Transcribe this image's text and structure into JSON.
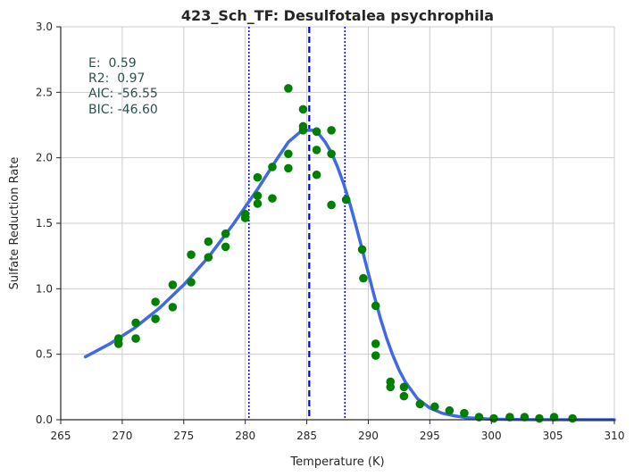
{
  "chart_data": {
    "type": "scatter",
    "title": "423_Sch_TF: Desulfotalea psychrophila",
    "xlabel": "Temperature (K)",
    "ylabel": "Sulfate Reduction Rate",
    "xlim": [
      265,
      310
    ],
    "ylim": [
      0,
      3.0
    ],
    "xticks": [
      "265",
      "270",
      "275",
      "280",
      "285",
      "290",
      "295",
      "300",
      "305",
      "310"
    ],
    "yticks": [
      "0.0",
      "0.5",
      "1.0",
      "1.5",
      "2.0",
      "2.5",
      "3.0"
    ],
    "grid": true,
    "colors": {
      "points": "#008000",
      "fit": "#4169e1",
      "peak_line": "#0000ff",
      "bound_lines": "#0000ff",
      "grid": "#cccccc",
      "axis": "#262626"
    },
    "stats": [
      "E:  0.59",
      "R2:  0.97",
      "AIC: -56.55",
      "BIC: -46.60"
    ],
    "vlines": {
      "peak": 285.2,
      "bounds": [
        280.3,
        288.1
      ]
    },
    "observed": [
      [
        269.7,
        0.62
      ],
      [
        269.7,
        0.58
      ],
      [
        271.1,
        0.74
      ],
      [
        271.1,
        0.62
      ],
      [
        272.7,
        0.9
      ],
      [
        272.7,
        0.77
      ],
      [
        274.1,
        1.03
      ],
      [
        274.1,
        0.86
      ],
      [
        275.6,
        1.26
      ],
      [
        275.6,
        1.05
      ],
      [
        277.0,
        1.36
      ],
      [
        277.0,
        1.24
      ],
      [
        278.4,
        1.42
      ],
      [
        278.4,
        1.32
      ],
      [
        280.0,
        1.57
      ],
      [
        280.0,
        1.54
      ],
      [
        281.0,
        1.85
      ],
      [
        281.0,
        1.71
      ],
      [
        281.0,
        1.65
      ],
      [
        282.2,
        1.93
      ],
      [
        282.2,
        1.69
      ],
      [
        283.5,
        2.53
      ],
      [
        283.5,
        2.03
      ],
      [
        283.5,
        1.92
      ],
      [
        284.7,
        2.37
      ],
      [
        284.7,
        2.24
      ],
      [
        284.7,
        2.21
      ],
      [
        285.8,
        2.2
      ],
      [
        285.8,
        2.06
      ],
      [
        285.8,
        1.87
      ],
      [
        287.0,
        2.21
      ],
      [
        287.0,
        2.03
      ],
      [
        287.0,
        1.64
      ],
      [
        288.2,
        1.68
      ],
      [
        289.5,
        1.3
      ],
      [
        289.6,
        1.08
      ],
      [
        290.6,
        0.87
      ],
      [
        290.6,
        0.58
      ],
      [
        290.6,
        0.49
      ],
      [
        291.8,
        0.29
      ],
      [
        291.8,
        0.25
      ],
      [
        292.9,
        0.25
      ],
      [
        292.9,
        0.18
      ],
      [
        294.2,
        0.12
      ],
      [
        295.4,
        0.1
      ],
      [
        296.6,
        0.07
      ],
      [
        297.8,
        0.05
      ],
      [
        299.0,
        0.02
      ],
      [
        300.2,
        0.01
      ],
      [
        301.5,
        0.02
      ],
      [
        302.7,
        0.02
      ],
      [
        303.9,
        0.01
      ],
      [
        305.1,
        0.02
      ],
      [
        306.6,
        0.01
      ]
    ],
    "fit_curve": [
      [
        267.0,
        0.48
      ],
      [
        269.0,
        0.58
      ],
      [
        271.0,
        0.7
      ],
      [
        273.0,
        0.85
      ],
      [
        275.0,
        1.03
      ],
      [
        277.0,
        1.24
      ],
      [
        279.0,
        1.49
      ],
      [
        281.0,
        1.76
      ],
      [
        282.5,
        1.98
      ],
      [
        283.5,
        2.12
      ],
      [
        284.5,
        2.2
      ],
      [
        285.0,
        2.21
      ],
      [
        285.5,
        2.21
      ],
      [
        286.0,
        2.18
      ],
      [
        286.5,
        2.12
      ],
      [
        287.0,
        2.04
      ],
      [
        287.5,
        1.93
      ],
      [
        288.0,
        1.8
      ],
      [
        288.5,
        1.65
      ],
      [
        289.0,
        1.48
      ],
      [
        289.5,
        1.3
      ],
      [
        290.0,
        1.12
      ],
      [
        290.5,
        0.94
      ],
      [
        291.0,
        0.77
      ],
      [
        291.5,
        0.62
      ],
      [
        292.0,
        0.49
      ],
      [
        292.5,
        0.38
      ],
      [
        293.0,
        0.29
      ],
      [
        294.0,
        0.16
      ],
      [
        295.0,
        0.09
      ],
      [
        296.0,
        0.05
      ],
      [
        297.0,
        0.03
      ],
      [
        298.0,
        0.015
      ],
      [
        300.0,
        0.004
      ],
      [
        303.0,
        0.001
      ],
      [
        310.0,
        0.0
      ]
    ]
  }
}
